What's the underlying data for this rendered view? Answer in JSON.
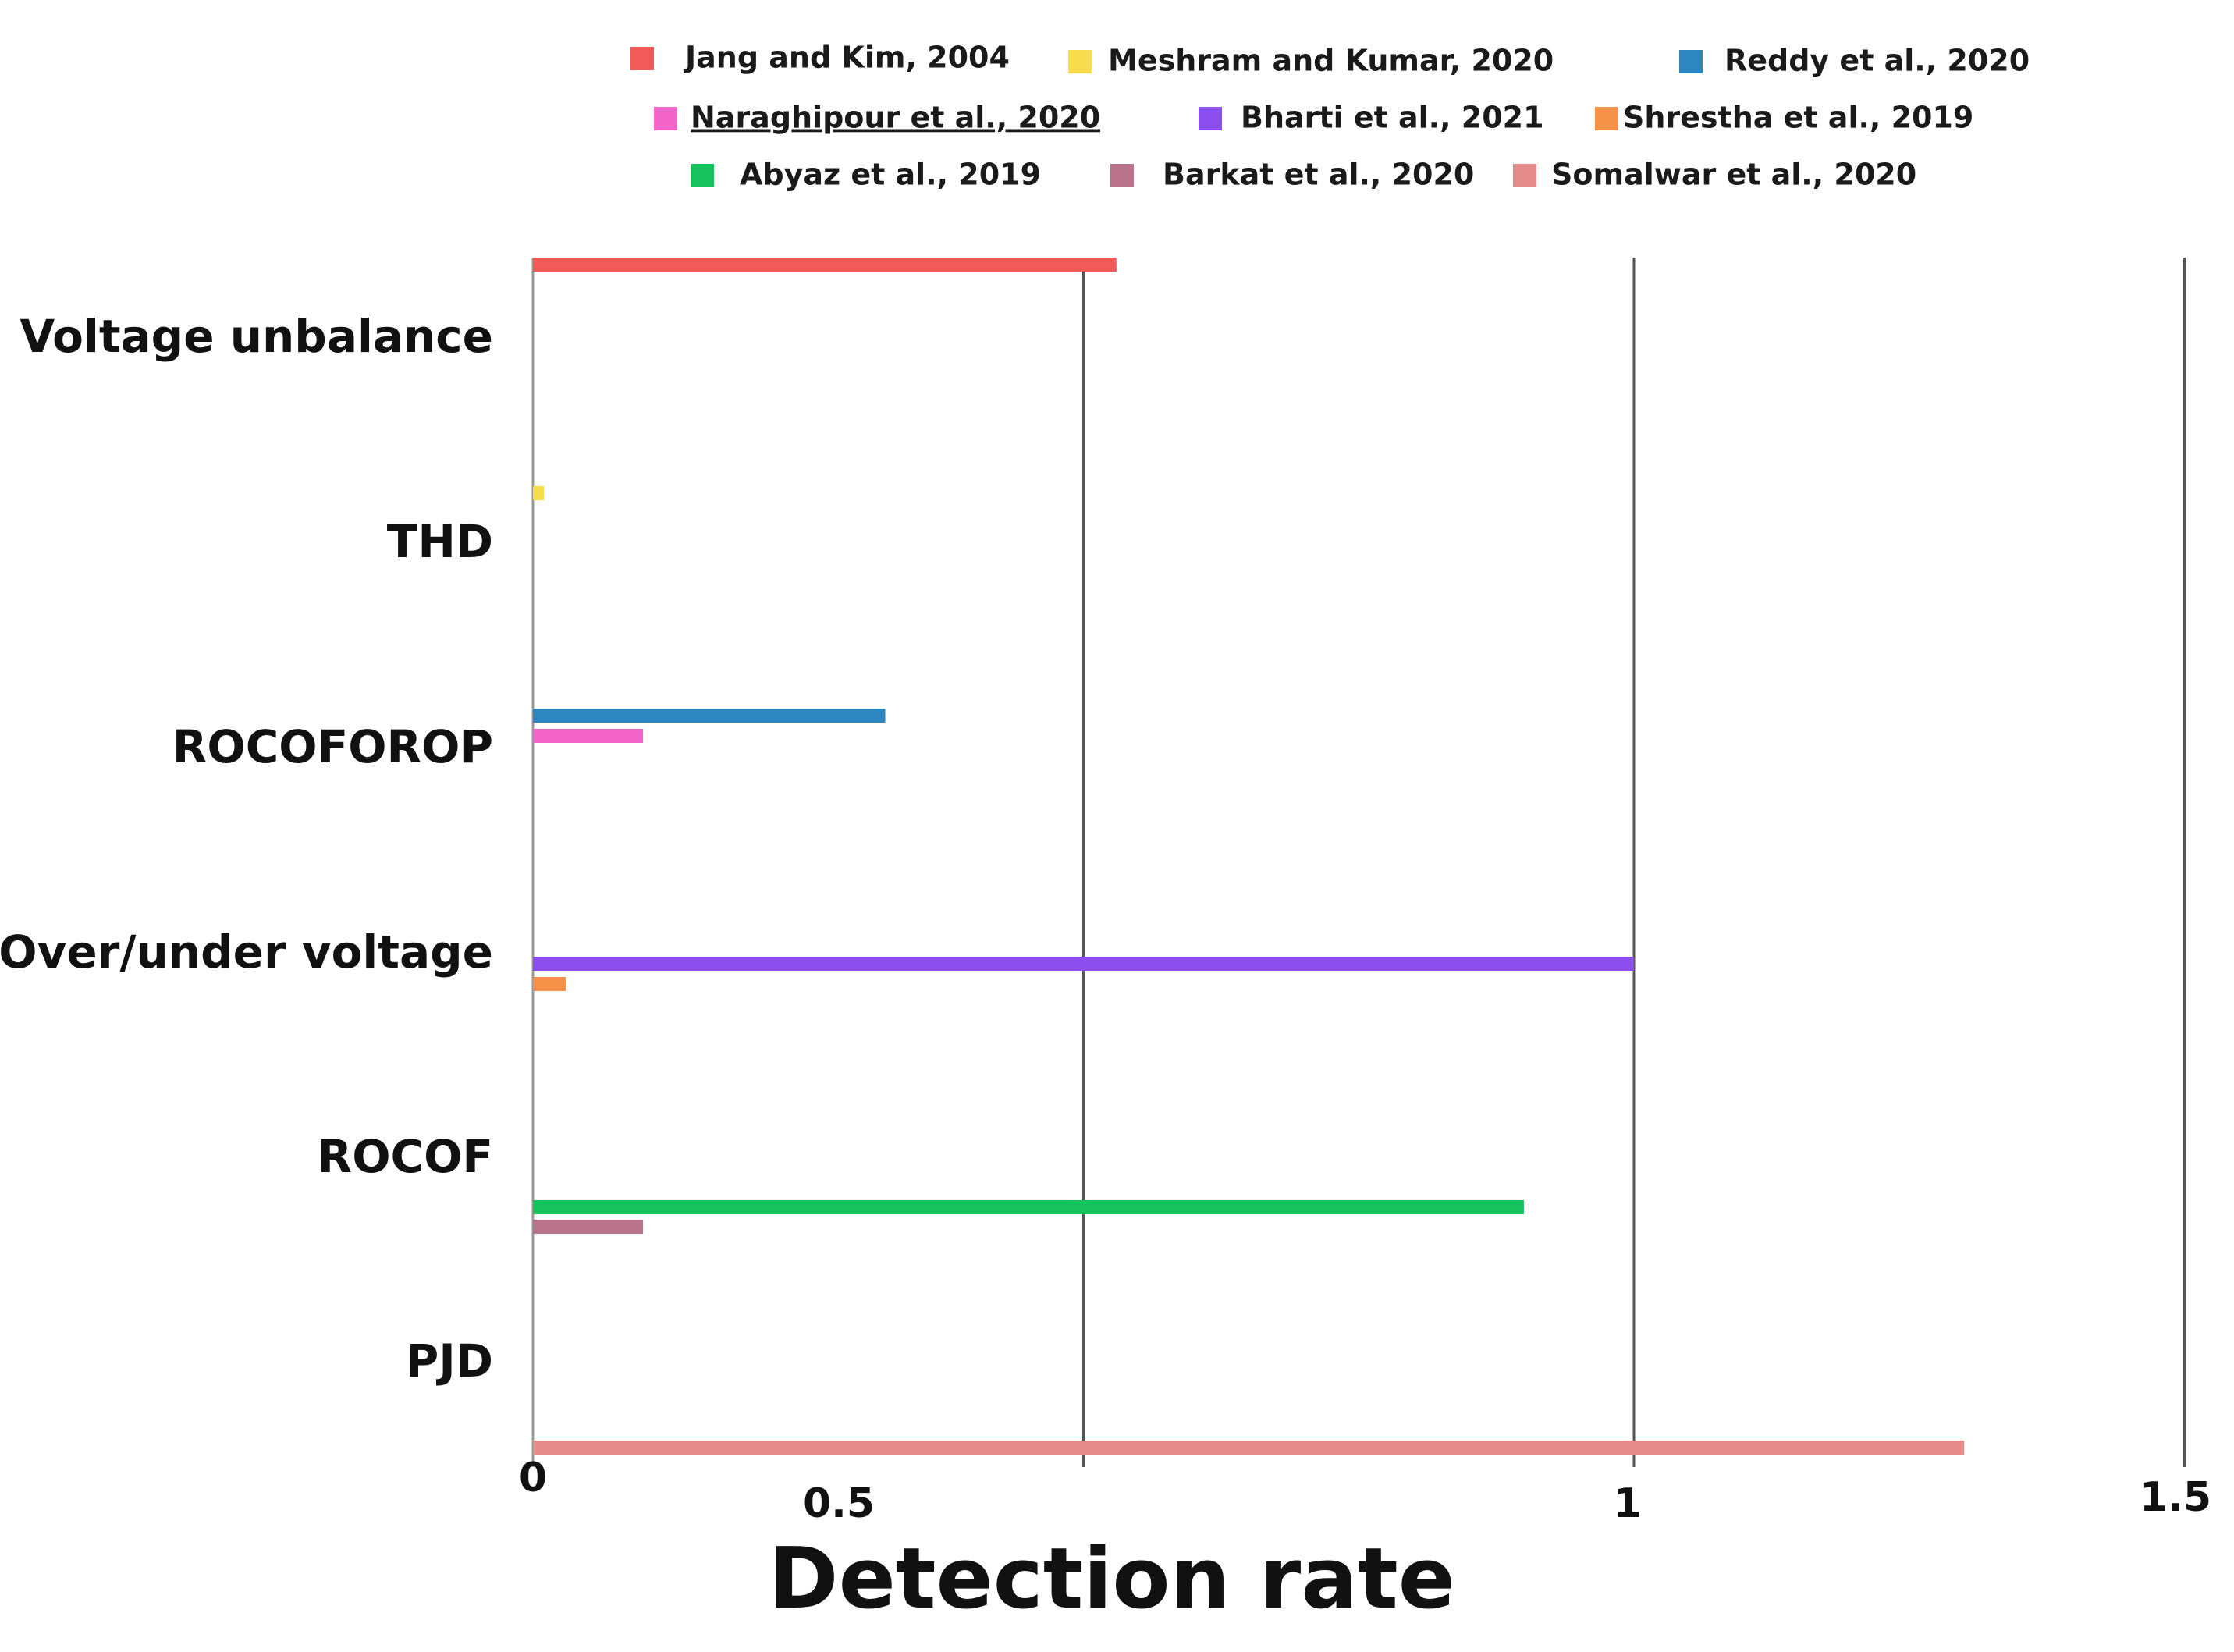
{
  "chart_data": {
    "type": "bar",
    "orientation": "horizontal",
    "title": "",
    "xlabel": "Detection rate",
    "ylabel": "",
    "xlim": [
      0,
      1.5
    ],
    "x_ticks": [
      {
        "label": "0",
        "value": 0
      },
      {
        "label": "0.5",
        "value": 0.5
      },
      {
        "label": "1",
        "value": 1
      },
      {
        "label": "1.5",
        "value": 1.5
      }
    ],
    "grid": true,
    "legend_position": "top",
    "categories": [
      "Voltage unbalance",
      "THD",
      "ROCOFOROP",
      "Over/under voltage",
      "ROCOF",
      "PJD"
    ],
    "series": [
      {
        "name": "Jang and Kim, 2004",
        "color": "#F25A5A",
        "category": "Voltage unbalance",
        "value": 0.53
      },
      {
        "name": "Meshram and Kumar, 2020",
        "color": "#F7DD4E",
        "category": "THD",
        "value": 0.01
      },
      {
        "name": "Reddy et al., 2020",
        "color": "#2E86C1",
        "category": "ROCOFOROP",
        "value": 0.32
      },
      {
        "name": "Naraghipour et al., 2020",
        "color": "#F465C9",
        "category": "ROCOFOROP",
        "value": 0.1,
        "underlined": true
      },
      {
        "name": "Bharti et al., 2021",
        "color": "#8B4FF0",
        "category": "Over/under voltage",
        "value": 1.0
      },
      {
        "name": "Shrestha et al., 2019",
        "color": "#F7924A",
        "category": "Over/under voltage",
        "value": 0.03
      },
      {
        "name": "Abyaz et al., 2019",
        "color": "#15C25B",
        "category": "ROCOF",
        "value": 0.9
      },
      {
        "name": "Barkat et al., 2020",
        "color": "#B9748B",
        "category": "ROCOF",
        "value": 0.1
      },
      {
        "name": "Somalwar et al., 2020",
        "color": "#E48A8A",
        "category": "PJD",
        "value": 1.3
      }
    ]
  }
}
